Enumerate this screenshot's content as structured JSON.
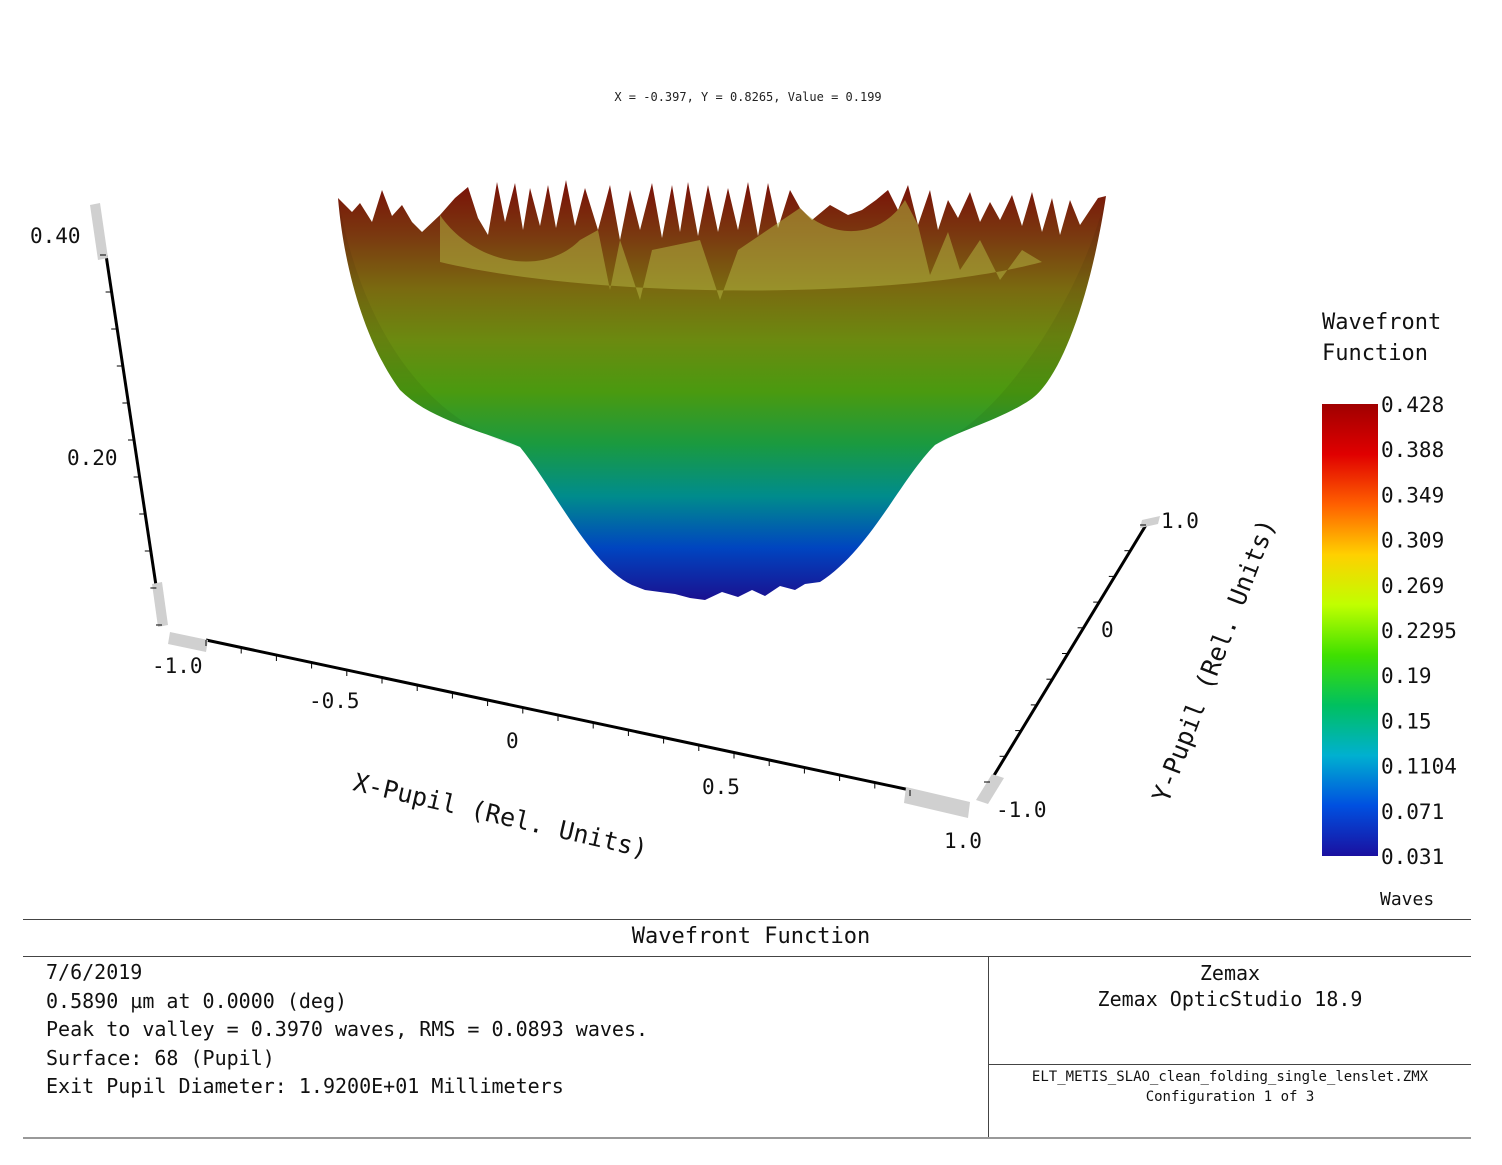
{
  "readout": "X = -0.397, Y = 0.8265, Value = 0.199",
  "chart_data": {
    "type": "surface-3d",
    "title": "Wavefront Function",
    "xlabel": "X-Pupil (Rel. Units)",
    "ylabel": "Y-Pupil (Rel. Units)",
    "zlabel": "",
    "x_ticks": [
      "-1.0",
      "-0.5",
      "0",
      "0.5",
      "1.0"
    ],
    "y_ticks": [
      "-1.0",
      "0",
      "1.0"
    ],
    "z_ticks": [
      "0.20",
      "0.40"
    ],
    "zlim": [
      0.031,
      0.428
    ],
    "colorbar": {
      "title_line1": "Wavefront",
      "title_line2": "Function",
      "unit": "Waves",
      "tick_labels": [
        "0.428",
        "0.388",
        "0.349",
        "0.309",
        "0.269",
        "0.2295",
        "0.19",
        "0.15",
        "0.1104",
        "0.071",
        "0.031"
      ],
      "colors": [
        "#1a10a0",
        "#0050e0",
        "#00b0d0",
        "#00c060",
        "#40e000",
        "#c0ff00",
        "#ffd000",
        "#ff6000",
        "#e00000",
        "#a00000"
      ]
    }
  },
  "footer": {
    "title": "Wavefront Function",
    "left": {
      "date": "7/6/2019",
      "wavelength": "0.5890 µm at 0.0000 (deg)",
      "stats": "Peak to valley = 0.3970 waves, RMS = 0.0893 waves.",
      "surface": "Surface: 68 (Pupil)",
      "pupil": "Exit Pupil Diameter: 1.9200E+01 Millimeters"
    },
    "right": {
      "company": "Zemax",
      "product": "Zemax OpticStudio 18.9",
      "file": "ELT_METIS_SLAO_clean_folding_single_lenslet.ZMX",
      "config": "Configuration 1 of 3"
    }
  }
}
